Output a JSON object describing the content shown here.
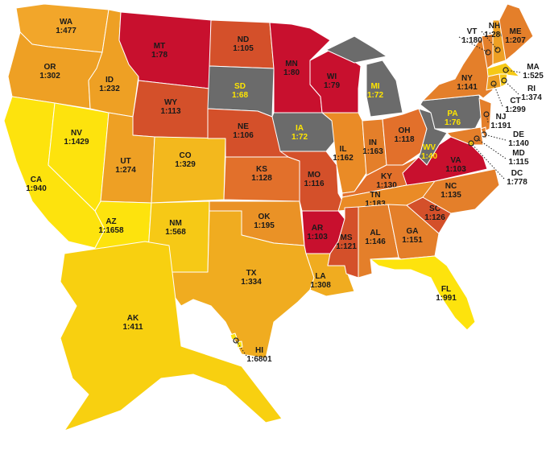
{
  "map": {
    "states": [
      {
        "abbr": "WA",
        "ratio": "1:477",
        "color": "#f2a62a"
      },
      {
        "abbr": "OR",
        "ratio": "1:302",
        "color": "#eea024"
      },
      {
        "abbr": "CA",
        "ratio": "1:940",
        "color": "#fde30d"
      },
      {
        "abbr": "NV",
        "ratio": "1:1429",
        "color": "#fde30d"
      },
      {
        "abbr": "ID",
        "ratio": "1:232",
        "color": "#eea024"
      },
      {
        "abbr": "MT",
        "ratio": "1:78",
        "color": "#c8102e"
      },
      {
        "abbr": "WY",
        "ratio": "1:113",
        "color": "#d4502a"
      },
      {
        "abbr": "UT",
        "ratio": "1:274",
        "color": "#eea024"
      },
      {
        "abbr": "CO",
        "ratio": "1:329",
        "color": "#f3b81d"
      },
      {
        "abbr": "AZ",
        "ratio": "1:1658",
        "color": "#fde30d"
      },
      {
        "abbr": "NM",
        "ratio": "1:568",
        "color": "#f6c916"
      },
      {
        "abbr": "ND",
        "ratio": "1:105",
        "color": "#d4502a"
      },
      {
        "abbr": "SD",
        "ratio": "1:68",
        "color": "#6b6b6b"
      },
      {
        "abbr": "NE",
        "ratio": "1:106",
        "color": "#d4502a"
      },
      {
        "abbr": "KS",
        "ratio": "1:128",
        "color": "#e2702b"
      },
      {
        "abbr": "OK",
        "ratio": "1:195",
        "color": "#ea9226"
      },
      {
        "abbr": "TX",
        "ratio": "1:334",
        "color": "#f0ac20"
      },
      {
        "abbr": "MN",
        "ratio": "1:80",
        "color": "#c8102e"
      },
      {
        "abbr": "IA",
        "ratio": "1:72",
        "color": "#6b6b6b"
      },
      {
        "abbr": "MO",
        "ratio": "1:116",
        "color": "#d4502a"
      },
      {
        "abbr": "AR",
        "ratio": "1:103",
        "color": "#c8102e"
      },
      {
        "abbr": "LA",
        "ratio": "1:308",
        "color": "#f0ac20"
      },
      {
        "abbr": "WI",
        "ratio": "1:79",
        "color": "#c8102e"
      },
      {
        "abbr": "IL",
        "ratio": "1:162",
        "color": "#ea8b26"
      },
      {
        "abbr": "MI",
        "ratio": "1:72",
        "color": "#6b6b6b"
      },
      {
        "abbr": "IN",
        "ratio": "1:163",
        "color": "#e47f2a"
      },
      {
        "abbr": "OH",
        "ratio": "1:118",
        "color": "#e2702b"
      },
      {
        "abbr": "KY",
        "ratio": "1:130",
        "color": "#e2702b"
      },
      {
        "abbr": "TN",
        "ratio": "1:183",
        "color": "#ea8b26"
      },
      {
        "abbr": "MS",
        "ratio": "1:121",
        "color": "#d4502a"
      },
      {
        "abbr": "AL",
        "ratio": "1:146",
        "color": "#e47f2a"
      },
      {
        "abbr": "GA",
        "ratio": "1:151",
        "color": "#e47f2a"
      },
      {
        "abbr": "FL",
        "ratio": "1:991",
        "color": "#fde30d"
      },
      {
        "abbr": "SC",
        "ratio": "1:126",
        "color": "#d4502a"
      },
      {
        "abbr": "NC",
        "ratio": "1:135",
        "color": "#e47f2a"
      },
      {
        "abbr": "VA",
        "ratio": "1:103",
        "color": "#c8102e"
      },
      {
        "abbr": "WV",
        "ratio": "1:40",
        "color": "#6b6b6b"
      },
      {
        "abbr": "PA",
        "ratio": "1:76",
        "color": "#6b6b6b"
      },
      {
        "abbr": "NY",
        "ratio": "1:141",
        "color": "#e47f2a"
      },
      {
        "abbr": "VT",
        "ratio": "1:180",
        "color": "#e47f2a"
      },
      {
        "abbr": "NH",
        "ratio": "1:280",
        "color": "#eea024"
      },
      {
        "abbr": "ME",
        "ratio": "1:207",
        "color": "#e47f2a"
      },
      {
        "abbr": "MA",
        "ratio": "1:525",
        "color": "#f6c916"
      },
      {
        "abbr": "RI",
        "ratio": "1:374",
        "color": "#f6c916"
      },
      {
        "abbr": "CT",
        "ratio": "1:299",
        "color": "#eea024"
      },
      {
        "abbr": "NJ",
        "ratio": "1:191",
        "color": "#e47f2a"
      },
      {
        "abbr": "DE",
        "ratio": "1:140",
        "color": "#e47f2a"
      },
      {
        "abbr": "MD",
        "ratio": "1:115",
        "color": "#e47f2a"
      },
      {
        "abbr": "DC",
        "ratio": "1:778",
        "color": "#f6c916"
      },
      {
        "abbr": "AK",
        "ratio": "1:411",
        "color": "#f8d010"
      },
      {
        "abbr": "HI",
        "ratio": "1:6801",
        "color": "#fde30d"
      }
    ]
  }
}
